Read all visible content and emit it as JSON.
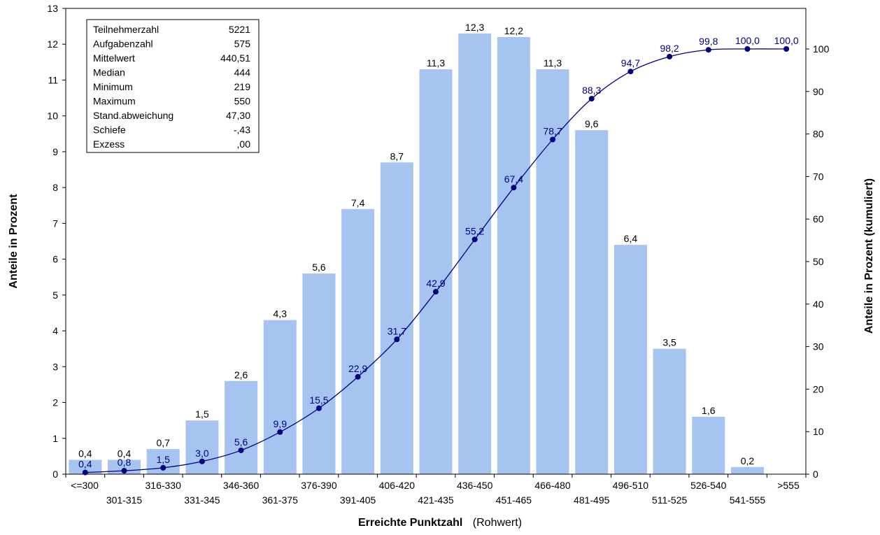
{
  "chart_data": {
    "type": "bar",
    "categories": [
      "<=300",
      "301-315",
      "316-330",
      "331-345",
      "346-360",
      "361-375",
      "376-390",
      "391-405",
      "406-420",
      "421-435",
      "436-450",
      "451-465",
      "466-480",
      "481-495",
      "496-510",
      "511-525",
      "526-540",
      "541-555",
      ">555"
    ],
    "series": [
      {
        "values": [
          0.4,
          0.4,
          0.7,
          1.5,
          2.6,
          4.3,
          5.6,
          7.4,
          8.7,
          11.3,
          12.3,
          12.2,
          11.3,
          9.6,
          6.4,
          3.5,
          1.6,
          0.2,
          null
        ]
      },
      {
        "type": "line",
        "axis": "right",
        "values": [
          0.4,
          0.8,
          1.5,
          3.0,
          5.6,
          9.9,
          15.5,
          22.9,
          31.7,
          42.9,
          55.2,
          67.4,
          78.7,
          88.3,
          94.7,
          98.2,
          99.8,
          100.0,
          100.0
        ]
      }
    ],
    "bar_labels": [
      "0,4",
      "0,4",
      "0,7",
      "1,5",
      "2,6",
      "4,3",
      "5,6",
      "7,4",
      "8,7",
      "11,3",
      "12,3",
      "12,2",
      "11,3",
      "9,6",
      "6,4",
      "3,5",
      "1,6",
      "0,2",
      ""
    ],
    "line_labels": [
      "0,4",
      "0,8",
      "1,5",
      "3,0",
      "5,6",
      "9,9",
      "15,5",
      "22,9",
      "31,7",
      "42,9",
      "55,2",
      "67,4",
      "78,7",
      "88,3",
      "94,7",
      "98,2",
      "99,8",
      "100,0",
      "100,0"
    ],
    "ylabel": "Anteile in Prozent",
    "ylabel_right": "Anteile in Prozent (kumuliert)",
    "xlabel_bold": "Erreichte Punktzahl",
    "xlabel_normal": "(Rohwert)",
    "ylim": [
      0,
      13
    ],
    "ylim_right": [
      0,
      100
    ],
    "yticks": [
      "0",
      "1",
      "2",
      "3",
      "4",
      "5",
      "6",
      "7",
      "8",
      "9",
      "10",
      "11",
      "12",
      "13"
    ],
    "yticks_right": [
      "0",
      "10",
      "20",
      "30",
      "40",
      "50",
      "60",
      "70",
      "80",
      "90",
      "100"
    ],
    "bar_color": "#A6C4F0",
    "line_color": "#000080",
    "stats": [
      {
        "label": "Teilnehmerzahl",
        "value": "5221"
      },
      {
        "label": "Aufgabenzahl",
        "value": "575"
      },
      {
        "label": "Mittelwert",
        "value": "440,51"
      },
      {
        "label": "Median",
        "value": "444"
      },
      {
        "label": "Minimum",
        "value": "219"
      },
      {
        "label": "Maximum",
        "value": "550"
      },
      {
        "label": "Stand.abweichung",
        "value": "47,30"
      },
      {
        "label": "Schiefe",
        "value": "-,43"
      },
      {
        "label": "Exzess",
        "value": ",00"
      }
    ]
  }
}
